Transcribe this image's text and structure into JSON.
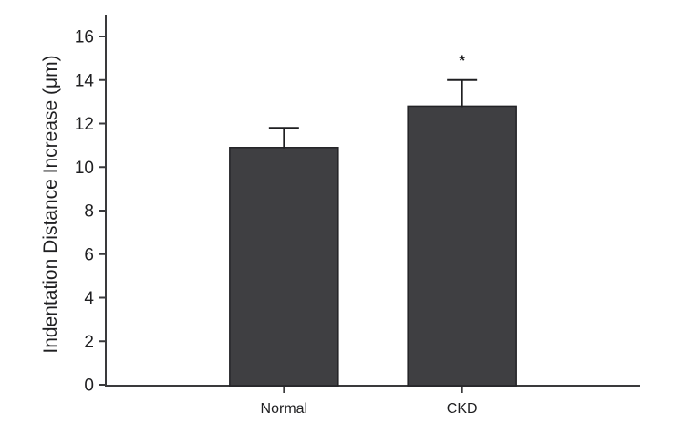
{
  "chart_data": {
    "type": "bar",
    "title": "",
    "categories": [
      "Normal",
      "CKD"
    ],
    "values": [
      10.9,
      12.8
    ],
    "errors_plus": [
      0.9,
      1.2
    ],
    "significance_labels": [
      "",
      "*"
    ],
    "xlabel": "",
    "ylabel": "Indentation Distance Increase (μm)",
    "ylim": [
      0,
      16
    ],
    "yticks": [
      0,
      2,
      4,
      6,
      8,
      10,
      12,
      14,
      16
    ],
    "grid": false,
    "legend": "none",
    "bar_color": "#3f3f42",
    "bar_edge_color": "#232326",
    "axis_color": "#3a3a3c",
    "text_color": "#1f1f21"
  }
}
